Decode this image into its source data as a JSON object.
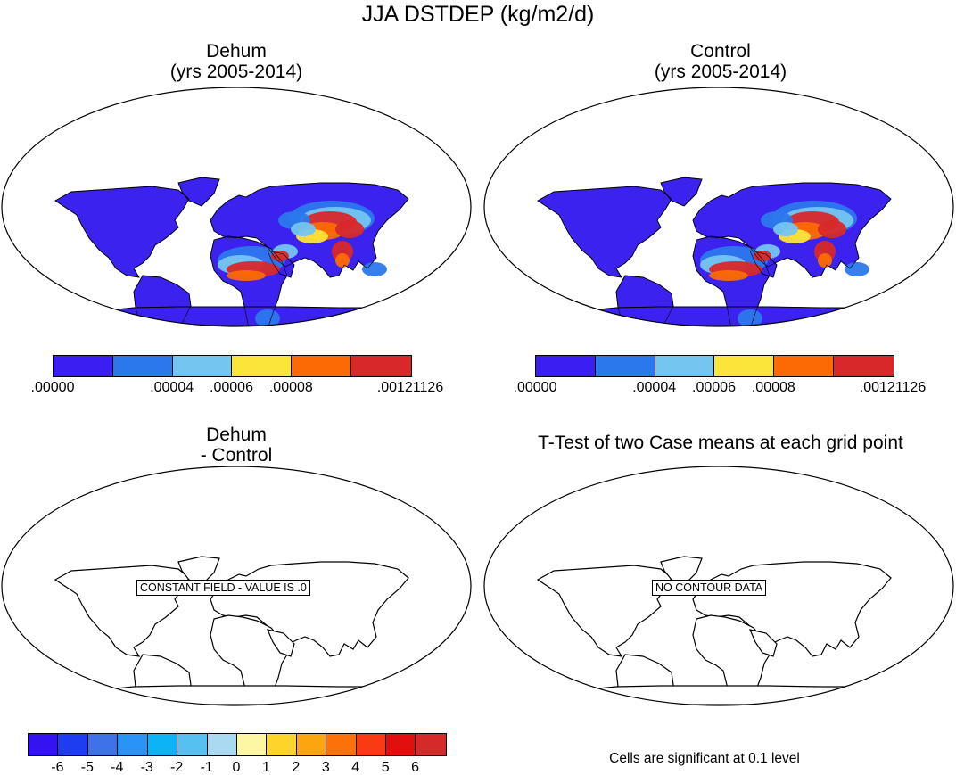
{
  "figure_title": "JJA DSTDEP (kg/m2/d)",
  "panels": {
    "p1": {
      "title_line1": "Dehum",
      "title_line2": "(yrs 2005-2014)"
    },
    "p2": {
      "title_line1": "Control",
      "title_line2": "(yrs 2005-2014)"
    },
    "p3": {
      "title_line1": "Dehum",
      "title_line2": "- Control",
      "message": "CONSTANT FIELD - VALUE IS .0"
    },
    "p4": {
      "title_line1": "T-Test of two Case means at each grid point",
      "message": "NO CONTOUR DATA",
      "note": "Cells are significant at 0.1 level"
    }
  },
  "colorbar_abs": {
    "colors": [
      "#3b1ef2",
      "#2b78ec",
      "#74c5f0",
      "#fce53a",
      "#fb6a05",
      "#d8282a"
    ],
    "labels": [
      ".00000",
      ".00004",
      ".00006",
      ".00008",
      ".00121126"
    ]
  },
  "colorbar_diff": {
    "colors": [
      "#3513f0",
      "#1c3ef0",
      "#3d72e8",
      "#2993f6",
      "#0db4f5",
      "#56c0ef",
      "#a9daf2",
      "#fdf7a4",
      "#fdd42a",
      "#fca50e",
      "#fb7209",
      "#f93a12",
      "#e20f0f",
      "#d52a2a"
    ],
    "labels": [
      "-6",
      "-5",
      "-4",
      "-3",
      "-2",
      "-1",
      "0",
      "1",
      "2",
      "3",
      "4",
      "5",
      "6"
    ]
  },
  "chart_data": {
    "type": "map",
    "projection": "Robinson",
    "variable": "DSTDEP",
    "units": "kg/m2/d",
    "season": "JJA",
    "panels": [
      {
        "case": "Dehum",
        "years": "2005-2014",
        "levels": [
          0.0,
          4e-05,
          6e-05,
          8e-05,
          0.00121126
        ],
        "high_regions": [
          "Sahara",
          "Arabian Peninsula",
          "Central Asia",
          "Taklamakan/Gobi",
          "Indian subcontinent"
        ]
      },
      {
        "case": "Control",
        "years": "2005-2014",
        "levels": [
          0.0,
          4e-05,
          6e-05,
          8e-05,
          0.00121126
        ],
        "high_regions": [
          "Sahara",
          "Arabian Peninsula",
          "Central Asia",
          "Taklamakan/Gobi",
          "Indian subcontinent"
        ]
      },
      {
        "case": "Dehum - Control",
        "field": "constant",
        "value": 0.0,
        "levels": [
          -6,
          -5,
          -4,
          -3,
          -2,
          -1,
          0,
          1,
          2,
          3,
          4,
          5,
          6
        ]
      },
      {
        "case": "T-Test",
        "significance_level": 0.1,
        "field": "none"
      }
    ]
  }
}
